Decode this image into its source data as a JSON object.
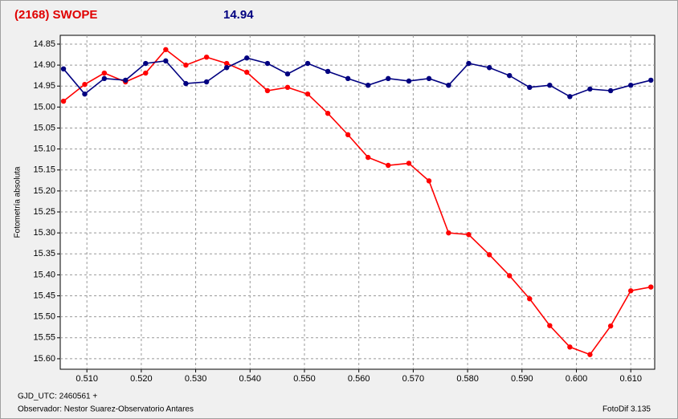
{
  "chart_data": {
    "type": "line",
    "title": "(2168) SWOPE",
    "subtitle": "14.94",
    "ylabel": "Fotometría absoluta",
    "x": [
      0.5057,
      0.5096,
      0.5132,
      0.5171,
      0.5208,
      0.5245,
      0.5282,
      0.532,
      0.5357,
      0.5394,
      0.5432,
      0.5469,
      0.5506,
      0.5543,
      0.558,
      0.5617,
      0.5654,
      0.5692,
      0.5729,
      0.5765,
      0.5802,
      0.584,
      0.5877,
      0.5914,
      0.5951,
      0.5988,
      0.6025,
      0.6063,
      0.61,
      0.6137
    ],
    "series": [
      {
        "color": "#ff0000",
        "values": [
          14.986,
          14.946,
          14.919,
          14.94,
          14.919,
          14.863,
          14.9,
          14.881,
          14.896,
          14.917,
          14.961,
          14.953,
          14.969,
          15.015,
          15.066,
          15.12,
          15.139,
          15.134,
          15.176,
          15.3,
          15.304,
          15.352,
          15.402,
          15.457,
          15.521,
          15.572,
          15.59,
          15.522,
          15.438,
          15.429
        ]
      },
      {
        "color": "#000080",
        "values": [
          14.909,
          14.969,
          14.932,
          14.936,
          14.896,
          14.89,
          14.944,
          14.94,
          14.906,
          14.883,
          14.896,
          14.921,
          14.896,
          14.915,
          14.932,
          14.948,
          14.932,
          14.938,
          14.932,
          14.948,
          14.896,
          14.906,
          14.925,
          14.953,
          14.948,
          14.975,
          14.957,
          14.961,
          14.948,
          14.936
        ]
      }
    ],
    "xlim": [
      0.5051,
      0.6144
    ],
    "xticks": [
      {
        "value": 0.51,
        "label": "0.510"
      },
      {
        "value": 0.52,
        "label": "0.520"
      },
      {
        "value": 0.53,
        "label": "0.530"
      },
      {
        "value": 0.54,
        "label": "0.540"
      },
      {
        "value": 0.55,
        "label": "0.550"
      },
      {
        "value": 0.56,
        "label": "0.560"
      },
      {
        "value": 0.57,
        "label": "0.570"
      },
      {
        "value": 0.58,
        "label": "0.580"
      },
      {
        "value": 0.59,
        "label": "0.590"
      },
      {
        "value": 0.6,
        "label": "0.600"
      },
      {
        "value": 0.61,
        "label": "0.610"
      }
    ],
    "ylim": [
      14.829,
      15.625
    ],
    "y_inverted": true,
    "yticks": [
      14.85,
      {
        "value": 14.9,
        "label": "14.90"
      },
      14.95,
      {
        "value": 15.0,
        "label": "15.00"
      },
      15.05,
      {
        "value": 15.1,
        "label": "15.10"
      },
      15.15,
      {
        "value": 15.2,
        "label": "15.20"
      },
      15.25,
      {
        "value": 15.3,
        "label": "15.30"
      },
      15.35,
      {
        "value": 15.4,
        "label": "15.40"
      },
      15.45,
      {
        "value": 15.5,
        "label": "15.50"
      },
      15.55,
      {
        "value": 15.6,
        "label": "15.60"
      }
    ],
    "grid": true,
    "markers": true
  },
  "footer": {
    "date_label": "GJD_UTC: 2460561 +",
    "observer": "Observador: Nestor Suarez-Observatorio Antares",
    "software": "FotoDif 3.135"
  }
}
